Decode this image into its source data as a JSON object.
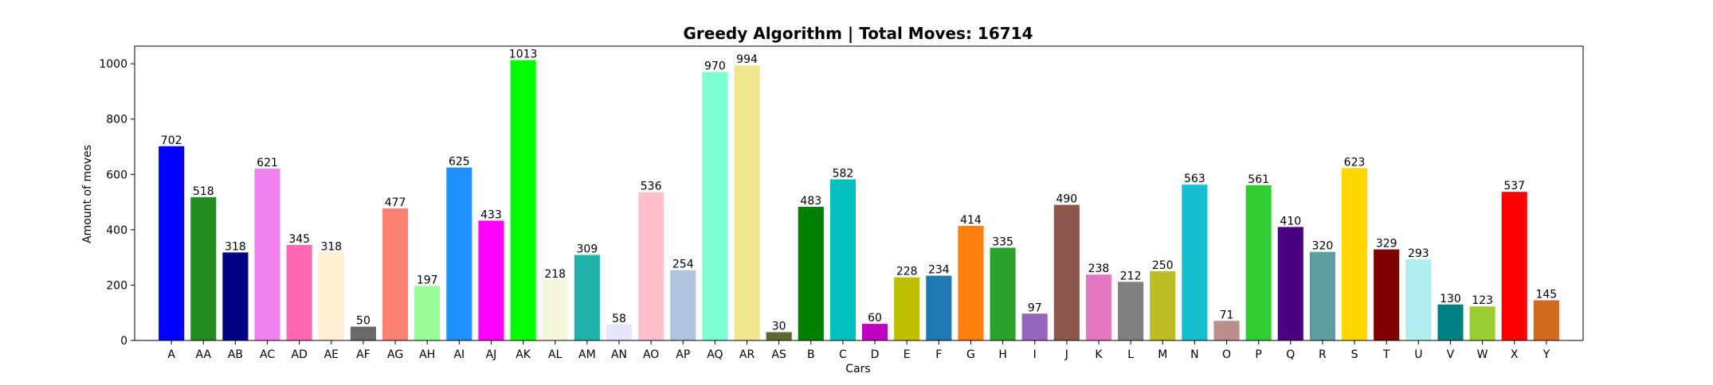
{
  "chart_data": {
    "type": "bar",
    "title": "Greedy Algorithm | Total Moves: 16714",
    "xlabel": "Cars",
    "ylabel": "Amount of moves",
    "ylim": [
      0,
      1063.65
    ],
    "yticks": [
      0,
      200,
      400,
      600,
      800,
      1000
    ],
    "grid": false,
    "categories": [
      "A",
      "AA",
      "AB",
      "AC",
      "AD",
      "AE",
      "AF",
      "AG",
      "AH",
      "AI",
      "AJ",
      "AK",
      "AL",
      "AM",
      "AN",
      "AO",
      "AP",
      "AQ",
      "AR",
      "AS",
      "B",
      "C",
      "D",
      "E",
      "F",
      "G",
      "H",
      "I",
      "J",
      "K",
      "L",
      "M",
      "N",
      "O",
      "P",
      "Q",
      "R",
      "S",
      "T",
      "U",
      "V",
      "W",
      "X",
      "Y"
    ],
    "values": [
      702,
      518,
      318,
      621,
      345,
      318,
      50,
      477,
      197,
      625,
      433,
      1013,
      218,
      309,
      58,
      536,
      254,
      970,
      994,
      30,
      483,
      582,
      60,
      228,
      234,
      414,
      335,
      97,
      490,
      238,
      212,
      250,
      563,
      71,
      561,
      410,
      320,
      623,
      329,
      293,
      130,
      123,
      537,
      145
    ],
    "colors": [
      "#0000ff",
      "#228b22",
      "#000080",
      "#ee82ee",
      "#ff69b4",
      "#ffefd5",
      "#696969",
      "#fa8072",
      "#98fb98",
      "#1e90ff",
      "#ff00ff",
      "#00ff00",
      "#f5f5dc",
      "#20b2aa",
      "#e6e6fa",
      "#ffc0cb",
      "#b0c4de",
      "#7fffd4",
      "#f0e68c",
      "#556b2f",
      "#008000",
      "#00bfbf",
      "#bf00bf",
      "#bfbf00",
      "#1f77b4",
      "#ff7f0e",
      "#2ca02c",
      "#9467bd",
      "#8c564b",
      "#e377c2",
      "#7f7f7f",
      "#bcbd22",
      "#17becf",
      "#bc8f8f",
      "#32cd32",
      "#4b0082",
      "#5f9ea0",
      "#ffd700",
      "#800000",
      "#afeeee",
      "#008080",
      "#9acd32",
      "#ff0000",
      "#d2691e"
    ]
  }
}
